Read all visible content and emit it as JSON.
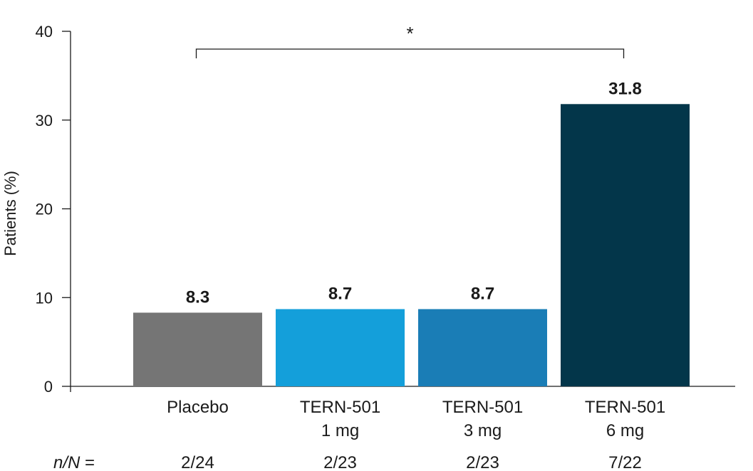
{
  "chart_data": {
    "type": "bar",
    "ylabel": "Patients (%)",
    "ylim": [
      0,
      40
    ],
    "yticks": [
      0,
      10,
      20,
      30,
      40
    ],
    "categories": [
      {
        "lines": [
          "Placebo"
        ]
      },
      {
        "lines": [
          "TERN-501",
          "1 mg"
        ]
      },
      {
        "lines": [
          "TERN-501",
          "3 mg"
        ]
      },
      {
        "lines": [
          "TERN-501",
          "6 mg"
        ]
      }
    ],
    "values": [
      8.3,
      8.7,
      8.7,
      31.8
    ],
    "value_labels": [
      "8.3",
      "8.7",
      "8.7",
      "31.8"
    ],
    "colors": [
      "#757575",
      "#149fda",
      "#1a7db6",
      "#03364a"
    ],
    "n_row_label_italic": "n/N",
    "n_row_label_suffix": " =",
    "n_values": [
      "2/24",
      "2/23",
      "2/23",
      "7/22"
    ],
    "significance": {
      "from_index": 0,
      "to_index": 3,
      "symbol": "*"
    },
    "grid": false,
    "legend": "none"
  }
}
